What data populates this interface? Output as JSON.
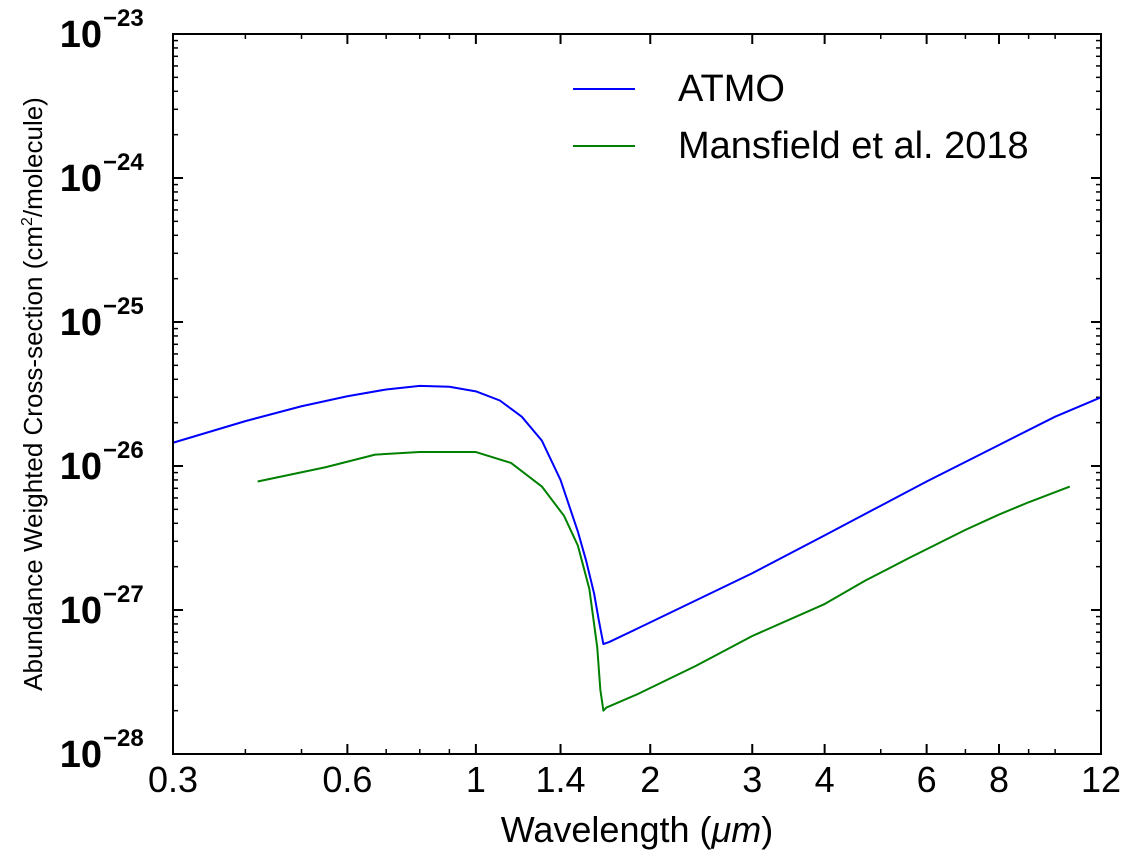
{
  "chart_data": {
    "type": "line",
    "xscale": "log",
    "yscale": "log",
    "xlim": [
      0.3,
      12
    ],
    "ylim": [
      1e-28,
      1e-23
    ],
    "xlabel_main": "Wavelength (",
    "xlabel_unit": "μm",
    "xlabel_close": ")",
    "ylabel_main": "Abundance Weighted Cross-section (cm",
    "ylabel_sup": "2",
    "ylabel_close": "/molecule)",
    "xticks": [
      {
        "value": 0.3,
        "label": "0.3"
      },
      {
        "value": 0.6,
        "label": "0.6"
      },
      {
        "value": 1,
        "label": "1"
      },
      {
        "value": 1.4,
        "label": "1.4"
      },
      {
        "value": 2,
        "label": "2"
      },
      {
        "value": 3,
        "label": "3"
      },
      {
        "value": 4,
        "label": "4"
      },
      {
        "value": 6,
        "label": "6"
      },
      {
        "value": 8,
        "label": "8"
      },
      {
        "value": 12,
        "label": "12"
      }
    ],
    "yticks": [
      {
        "value": 1e-28,
        "base": "10",
        "exp": "−28"
      },
      {
        "value": 1e-27,
        "base": "10",
        "exp": "−27"
      },
      {
        "value": 1e-26,
        "base": "10",
        "exp": "−26"
      },
      {
        "value": 1e-25,
        "base": "10",
        "exp": "−25"
      },
      {
        "value": 1e-24,
        "base": "10",
        "exp": "−24"
      },
      {
        "value": 1e-23,
        "base": "10",
        "exp": "−23"
      }
    ],
    "legend_position": "top-right",
    "series": [
      {
        "name": "ATMO",
        "color": "#0000ff",
        "x": [
          0.3,
          0.4,
          0.5,
          0.6,
          0.7,
          0.8,
          0.9,
          1.0,
          1.1,
          1.2,
          1.3,
          1.4,
          1.5,
          1.55,
          1.6,
          1.63,
          1.66,
          1.7,
          2.0,
          3.0,
          4.0,
          5.0,
          6.0,
          8.0,
          10.0,
          12.0
        ],
        "y": [
          1.45e-26,
          2.05e-26,
          2.6e-26,
          3.05e-26,
          3.4e-26,
          3.6e-26,
          3.55e-26,
          3.3e-26,
          2.85e-26,
          2.2e-26,
          1.5e-26,
          8e-27,
          3.5e-27,
          2.2e-27,
          1.3e-27,
          8.5e-28,
          5.8e-28,
          6e-28,
          8.2e-28,
          1.8e-27,
          3.3e-27,
          5.3e-27,
          7.8e-27,
          1.4e-26,
          2.2e-26,
          3e-26
        ]
      },
      {
        "name": "Mansfield et al. 2018",
        "color": "#008000",
        "x": [
          0.42,
          0.55,
          0.67,
          0.8,
          1.0,
          1.15,
          1.3,
          1.42,
          1.5,
          1.57,
          1.62,
          1.64,
          1.66,
          1.68,
          1.9,
          2.4,
          3.0,
          4.0,
          4.7,
          5.6,
          7.0,
          8.0,
          9.0,
          10.6
        ],
        "y": [
          7.8e-27,
          9.8e-27,
          1.2e-26,
          1.25e-26,
          1.25e-26,
          1.05e-26,
          7.2e-27,
          4.5e-27,
          2.8e-27,
          1.4e-27,
          5.5e-28,
          2.8e-28,
          2e-28,
          2.1e-28,
          2.6e-28,
          4.1e-28,
          6.6e-28,
          1.1e-27,
          1.6e-27,
          2.3e-27,
          3.6e-27,
          4.6e-27,
          5.6e-27,
          7.2e-27
        ]
      }
    ]
  }
}
